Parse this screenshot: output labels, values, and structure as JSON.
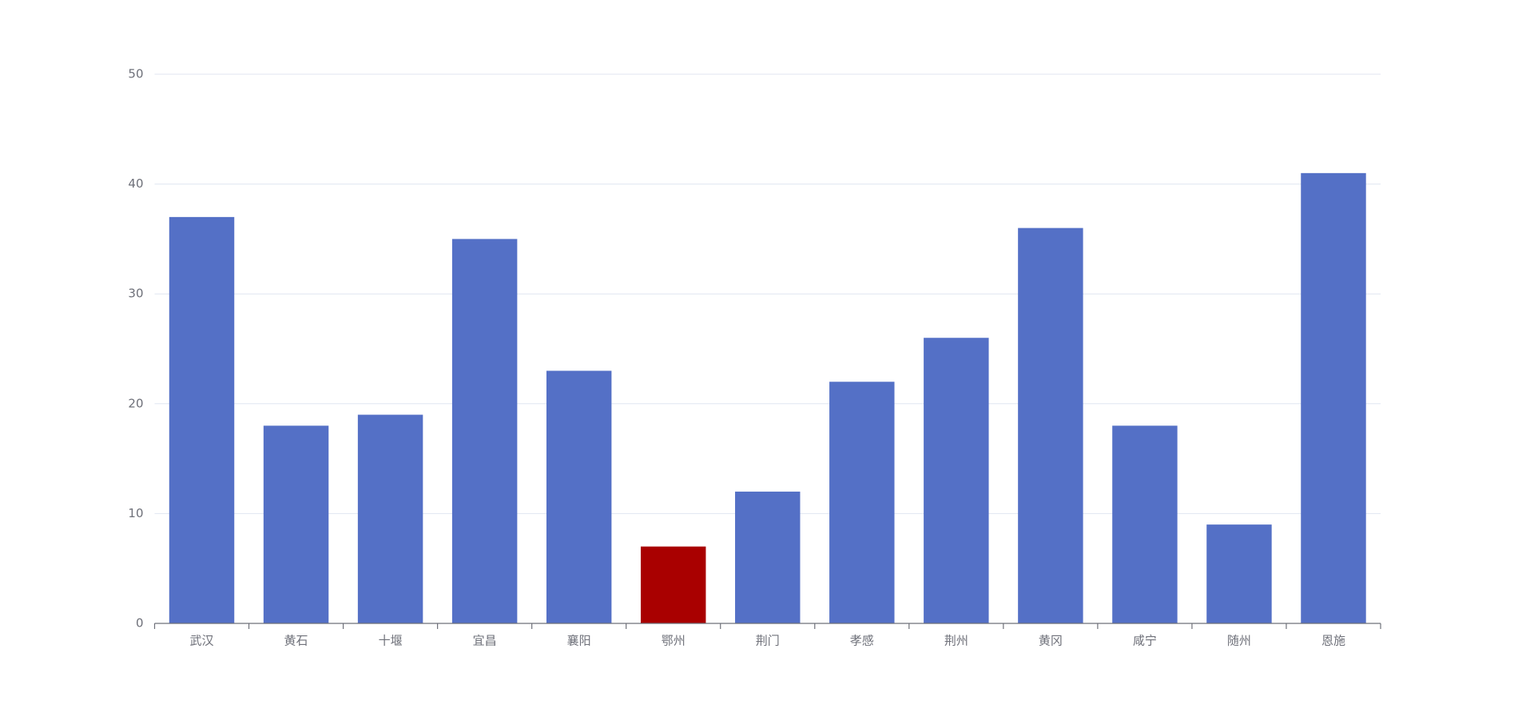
{
  "chart_data": {
    "type": "bar",
    "categories": [
      "武汉",
      "黄石",
      "十堰",
      "宜昌",
      "襄阳",
      "鄂州",
      "荆门",
      "孝感",
      "荆州",
      "黄冈",
      "咸宁",
      "随州",
      "恩施"
    ],
    "values": [
      37,
      18,
      19,
      35,
      23,
      7,
      12,
      22,
      26,
      36,
      18,
      9,
      41
    ],
    "colors": [
      "#5470c6",
      "#5470c6",
      "#5470c6",
      "#5470c6",
      "#5470c6",
      "#a90000",
      "#5470c6",
      "#5470c6",
      "#5470c6",
      "#5470c6",
      "#5470c6",
      "#5470c6",
      "#5470c6"
    ],
    "ylim": [
      0,
      50
    ],
    "yticks": [
      0,
      10,
      20,
      30,
      40,
      50
    ],
    "grid": true
  }
}
